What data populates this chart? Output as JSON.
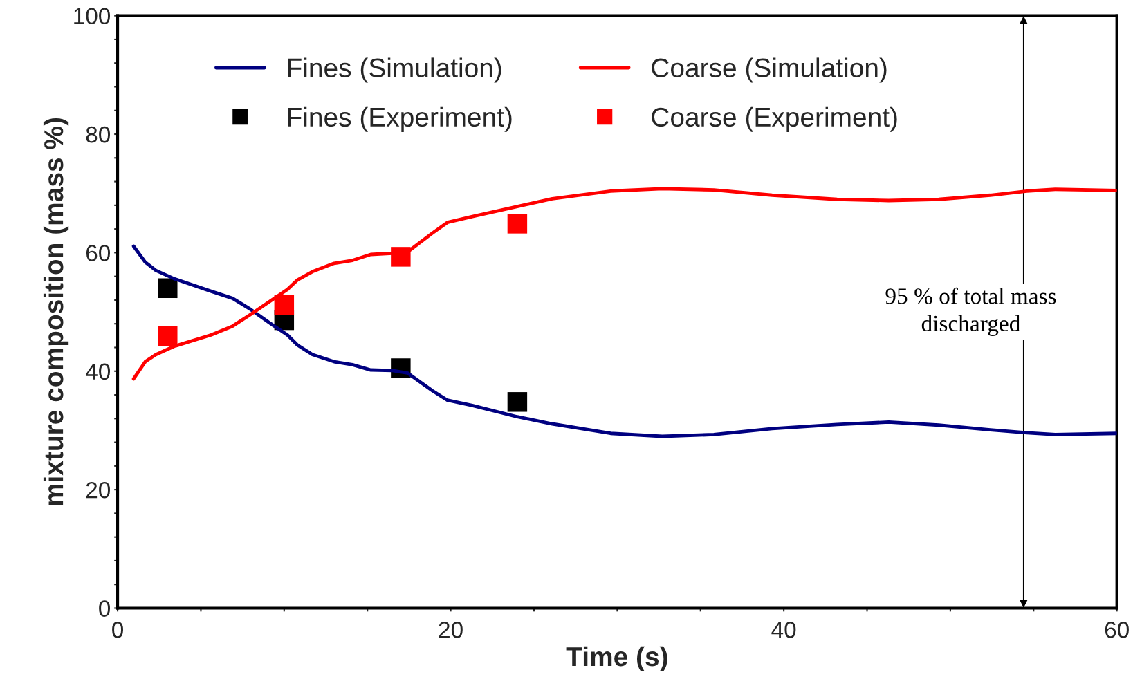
{
  "chart_data": {
    "type": "line",
    "xlabel": "Time (s)",
    "ylabel": "mixture composition (mass %)",
    "xlim": [
      0,
      60
    ],
    "ylim": [
      0,
      100
    ],
    "xticks": [
      0,
      {
        "value": 5,
        "label": null
      },
      {
        "value": 10,
        "label": null
      },
      {
        "value": 15,
        "label": null
      },
      20,
      {
        "value": 25,
        "label": null
      },
      {
        "value": 30,
        "label": null
      },
      {
        "value": 35,
        "label": null
      },
      40,
      {
        "value": 45,
        "label": null
      },
      {
        "value": 50,
        "label": null
      },
      {
        "value": 55,
        "label": null
      },
      60
    ],
    "yticks": [
      0,
      {
        "value": 4,
        "label": null
      },
      {
        "value": 8,
        "label": null
      },
      {
        "value": 12,
        "label": null
      },
      {
        "value": 16,
        "label": null
      },
      20,
      {
        "value": 24,
        "label": null
      },
      {
        "value": 28,
        "label": null
      },
      {
        "value": 32,
        "label": null
      },
      {
        "value": 36,
        "label": null
      },
      40,
      {
        "value": 44,
        "label": null
      },
      {
        "value": 48,
        "label": null
      },
      {
        "value": 52,
        "label": null
      },
      {
        "value": 56,
        "label": null
      },
      60,
      {
        "value": 64,
        "label": null
      },
      {
        "value": 68,
        "label": null
      },
      {
        "value": 72,
        "label": null
      },
      {
        "value": 76,
        "label": null
      },
      80,
      {
        "value": 84,
        "label": null
      },
      {
        "value": 88,
        "label": null
      },
      {
        "value": 92,
        "label": null
      },
      {
        "value": 96,
        "label": null
      },
      100
    ],
    "grid": false,
    "legend": "top",
    "series": [
      {
        "name": "Fines (Simulation)",
        "color": "#000080",
        "line_style": "solid",
        "marker": "none",
        "x": [
          0.96,
          1.66,
          2.3,
          3.4,
          5.6,
          6.9,
          8.0,
          9.1,
          10.2,
          10.8,
          11.7,
          13.0,
          14.1,
          15.2,
          16.5,
          17.4,
          18.9,
          19.8,
          21.3,
          24.0,
          26.1,
          29.6,
          32.7,
          35.8,
          39.3,
          43.2,
          46.3,
          49.3,
          52.4,
          54.6,
          56.3,
          60
        ],
        "values": [
          61.1,
          58.4,
          57.0,
          55.6,
          53.5,
          52.3,
          50.4,
          48.2,
          46.1,
          44.4,
          42.8,
          41.6,
          41.1,
          40.2,
          40.1,
          39.7,
          36.7,
          35.1,
          34.2,
          32.3,
          31.1,
          29.5,
          29.0,
          29.3,
          30.3,
          31.0,
          31.4,
          30.9,
          30.1,
          29.6,
          29.3,
          29.5
        ]
      },
      {
        "name": "Coarse (Simulation)",
        "color": "#ff0000",
        "line_style": "solid",
        "marker": "none",
        "x": [
          0.96,
          1.66,
          2.3,
          3.4,
          5.6,
          6.9,
          8.0,
          9.1,
          10.2,
          10.8,
          11.7,
          13.0,
          14.1,
          15.2,
          16.5,
          17.4,
          18.9,
          19.8,
          21.3,
          24.0,
          26.1,
          29.6,
          32.7,
          35.8,
          39.3,
          43.2,
          46.3,
          49.3,
          52.4,
          54.6,
          56.3,
          60
        ],
        "values": [
          38.7,
          41.6,
          42.8,
          44.2,
          46.1,
          47.6,
          49.6,
          51.7,
          53.8,
          55.4,
          56.8,
          58.2,
          58.7,
          59.7,
          59.9,
          60.1,
          63.3,
          65.1,
          66.1,
          67.8,
          69.1,
          70.4,
          70.8,
          70.6,
          69.7,
          69.0,
          68.8,
          69.0,
          69.7,
          70.4,
          70.7,
          70.5
        ]
      },
      {
        "name": "Fines (Experiment)",
        "type": "scatter",
        "color": "#000000",
        "marker": "square",
        "x": [
          3.0,
          10.0,
          17.0,
          24.0
        ],
        "values": [
          54.0,
          48.6,
          40.5,
          34.8
        ]
      },
      {
        "name": "Coarse (Experiment)",
        "type": "scatter",
        "color": "#ff0000",
        "marker": "square",
        "x": [
          3.0,
          10.0,
          17.0,
          24.0
        ],
        "values": [
          45.9,
          51.2,
          59.3,
          64.9
        ]
      }
    ],
    "ref_lines": [
      {
        "axis": "x",
        "value": 54.4,
        "label": "95 % of total mass\ndischarged",
        "color": "#000000"
      }
    ]
  }
}
